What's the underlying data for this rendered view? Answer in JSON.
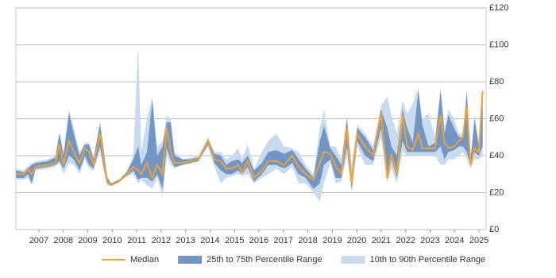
{
  "chart_data": {
    "type": "range-line",
    "x": [
      2006.06,
      2006.38,
      2006.55,
      2006.71,
      2006.87,
      2007.36,
      2007.68,
      2007.84,
      2008.01,
      2008.23,
      2008.43,
      2008.66,
      2008.88,
      2009.05,
      2009.24,
      2009.5,
      2009.63,
      2009.79,
      2009.95,
      2010.28,
      2010.6,
      2010.86,
      2011.06,
      2011.19,
      2011.42,
      2011.64,
      2011.84,
      2012.06,
      2012.23,
      2012.39,
      2012.55,
      2012.88,
      2013.2,
      2013.53,
      2013.92,
      2014.18,
      2014.44,
      2014.66,
      2014.89,
      2015.15,
      2015.31,
      2015.54,
      2015.8,
      2016.12,
      2016.38,
      2016.71,
      2017.03,
      2017.36,
      2017.62,
      2017.91,
      2018.23,
      2018.49,
      2018.66,
      2018.92,
      2019.14,
      2019.37,
      2019.6,
      2019.79,
      2020.02,
      2020.34,
      2020.67,
      2020.99,
      2021.25,
      2021.42,
      2021.64,
      2021.87,
      2022.06,
      2022.29,
      2022.52,
      2022.68,
      2022.94,
      2023.2,
      2023.43,
      2023.59,
      2023.75,
      2023.98,
      2024.18,
      2024.34,
      2024.5,
      2024.66,
      2024.82,
      2024.99,
      2025.15
    ],
    "series": [
      {
        "name": "10th to 90th Percentile Range",
        "color": "#c8daee",
        "lower": [
          27,
          27,
          28,
          24,
          32,
          33,
          34,
          36,
          30,
          36,
          35,
          30,
          38,
          33,
          32,
          43,
          33,
          24,
          24,
          26,
          29,
          30,
          25,
          27,
          24,
          22,
          28,
          18,
          40,
          35,
          33,
          35,
          36,
          37,
          45,
          34,
          25,
          28,
          29,
          30,
          29,
          30,
          25,
          28,
          30,
          33,
          30,
          34,
          25,
          25,
          20,
          15,
          25,
          36,
          25,
          26,
          40,
          20,
          45,
          35,
          35,
          50,
          25,
          33,
          25,
          42,
          40,
          40,
          40,
          40,
          40,
          40,
          35,
          35,
          38,
          38,
          40,
          42,
          38,
          33,
          38,
          38,
          40
        ],
        "upper": [
          33,
          32,
          34,
          36,
          37,
          38,
          40,
          53,
          42,
          65,
          55,
          42,
          47,
          47,
          40,
          59,
          46,
          30,
          25,
          27,
          32,
          40,
          100,
          42,
          60,
          72,
          45,
          48,
          62,
          60,
          42,
          38,
          39,
          40,
          50,
          42,
          42,
          38,
          40,
          44,
          38,
          46,
          33,
          42,
          48,
          52,
          45,
          44,
          42,
          35,
          30,
          55,
          65,
          45,
          45,
          38,
          62,
          35,
          57,
          52,
          45,
          67,
          72,
          62,
          52,
          70,
          63,
          68,
          77,
          60,
          63,
          50,
          77,
          55,
          65,
          60,
          52,
          52,
          75,
          40,
          62,
          48,
          76
        ]
      },
      {
        "name": "25th to 75th Percentile Range",
        "color": "#7196c6",
        "lower": [
          28,
          28,
          30,
          25,
          33,
          34,
          35,
          37,
          33,
          40,
          38,
          32,
          40,
          35,
          33,
          45,
          35,
          25,
          24,
          26,
          29,
          32,
          27,
          28,
          28,
          26,
          30,
          22,
          44,
          38,
          34,
          35,
          36,
          37,
          46,
          36,
          32,
          30,
          30,
          32,
          30,
          34,
          26,
          30,
          35,
          35,
          33,
          36,
          30,
          28,
          22,
          25,
          35,
          38,
          28,
          28,
          45,
          22,
          48,
          40,
          37,
          55,
          28,
          38,
          28,
          48,
          42,
          42,
          42,
          42,
          42,
          42,
          45,
          38,
          42,
          43,
          45,
          45,
          42,
          35,
          42,
          40,
          45
        ],
        "upper": [
          32,
          31,
          33,
          35,
          36,
          37,
          39,
          52,
          40,
          63,
          52,
          40,
          46,
          46,
          38,
          57,
          45,
          28,
          25,
          27,
          31,
          38,
          45,
          35,
          42,
          70,
          40,
          45,
          58,
          58,
          40,
          38,
          38,
          39,
          49,
          41,
          40,
          35,
          37,
          38,
          36,
          40,
          32,
          36,
          42,
          43,
          41,
          43,
          38,
          33,
          28,
          48,
          56,
          44,
          40,
          35,
          60,
          30,
          55,
          50,
          43,
          65,
          55,
          45,
          40,
          65,
          55,
          47,
          75,
          57,
          45,
          47,
          75,
          52,
          62,
          55,
          50,
          50,
          75,
          38,
          60,
          45,
          75
        ]
      },
      {
        "name": "Median",
        "color": "#f0a22e",
        "values": [
          30,
          30,
          33,
          30,
          34,
          35,
          36,
          46,
          35,
          48,
          42,
          36,
          44,
          42,
          35,
          52,
          40,
          26,
          24,
          26,
          30,
          34,
          32,
          30,
          36,
          28,
          35,
          30,
          55,
          42,
          36,
          36,
          37,
          38,
          48,
          38,
          37,
          33,
          33,
          35,
          31,
          37,
          28,
          32,
          37,
          37,
          35,
          40,
          34,
          30,
          27,
          36,
          42,
          41,
          34,
          30,
          55,
          25,
          52,
          45,
          40,
          63,
          28,
          41,
          30,
          62,
          45,
          43,
          52,
          44,
          44,
          44,
          62,
          47,
          44,
          45,
          48,
          50,
          67,
          35,
          44,
          42,
          75
        ]
      }
    ],
    "xlim": [
      2006.06,
      2025.29
    ],
    "xticks": [
      2007,
      2008,
      2009,
      2010,
      2011,
      2012,
      2013,
      2014,
      2015,
      2016,
      2017,
      2018,
      2019,
      2020,
      2021,
      2022,
      2023,
      2024,
      2025
    ],
    "ylim": [
      0,
      120
    ],
    "yticks": [
      {
        "value": 0,
        "label": "£0"
      },
      {
        "value": 20,
        "label": "£20"
      },
      {
        "value": 40,
        "label": "£40"
      },
      {
        "value": 60,
        "label": "£60"
      },
      {
        "value": 80,
        "label": "£80"
      },
      {
        "value": 100,
        "label": "£100"
      },
      {
        "value": 120,
        "label": "£120"
      }
    ],
    "grid": true,
    "legend": "bottom"
  }
}
